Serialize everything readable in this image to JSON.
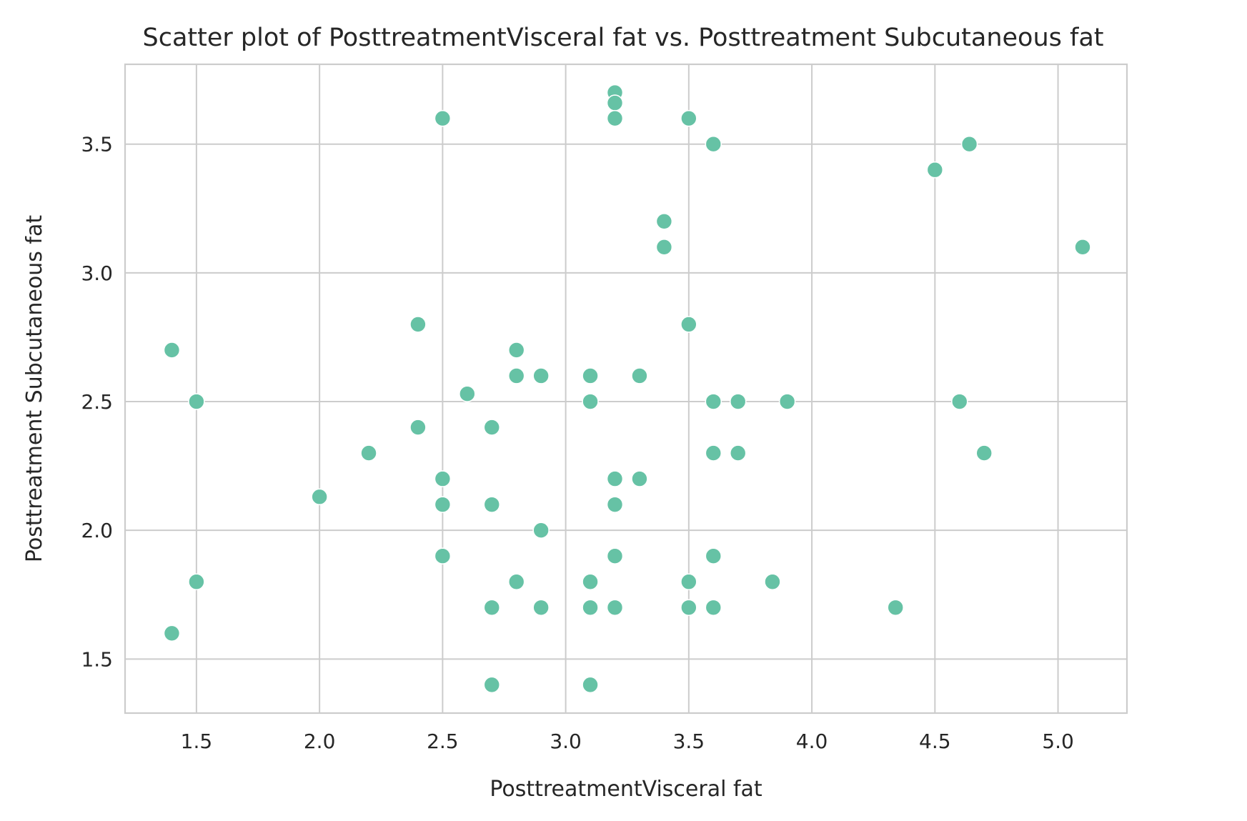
{
  "chart_data": {
    "type": "scatter",
    "title": "Scatter plot of PosttreatmentVisceral fat vs. Posttreatment Subcutaneous fat",
    "xlabel": "PosttreatmentVisceral fat",
    "ylabel": "Posttreatment Subcutaneous fat",
    "xlim": [
      1.21,
      5.28
    ],
    "ylim": [
      1.29,
      3.81
    ],
    "xticks": [
      1.5,
      2.0,
      2.5,
      3.0,
      3.5,
      4.0,
      4.5,
      5.0
    ],
    "xtick_labels": [
      "1.5",
      "2.0",
      "2.5",
      "3.0",
      "3.5",
      "4.0",
      "4.5",
      "5.0"
    ],
    "yticks": [
      1.5,
      2.0,
      2.5,
      3.0,
      3.5
    ],
    "ytick_labels": [
      "1.5",
      "2.0",
      "2.5",
      "3.0",
      "3.5"
    ],
    "grid": true,
    "marker_color": "#66c2a5",
    "x": [
      1.4,
      1.4,
      1.5,
      1.5,
      2.0,
      2.2,
      2.4,
      2.4,
      2.5,
      2.5,
      2.5,
      2.5,
      2.6,
      2.7,
      2.7,
      2.7,
      2.7,
      2.8,
      2.8,
      2.8,
      2.9,
      2.9,
      2.9,
      3.1,
      3.1,
      3.1,
      3.1,
      3.1,
      3.2,
      3.2,
      3.2,
      3.2,
      3.2,
      3.2,
      3.2,
      3.3,
      3.3,
      3.4,
      3.4,
      3.5,
      3.5,
      3.5,
      3.5,
      3.6,
      3.6,
      3.6,
      3.6,
      3.6,
      3.7,
      3.7,
      3.84,
      3.9,
      4.34,
      4.5,
      4.6,
      4.64,
      4.7,
      5.1
    ],
    "y": [
      2.7,
      1.6,
      2.5,
      1.8,
      2.13,
      2.3,
      2.8,
      2.4,
      3.6,
      2.2,
      2.1,
      1.9,
      2.53,
      2.4,
      2.1,
      1.7,
      1.4,
      2.7,
      2.6,
      1.8,
      2.6,
      2.0,
      1.7,
      2.6,
      2.5,
      1.8,
      1.7,
      1.4,
      3.7,
      3.66,
      3.6,
      2.2,
      2.1,
      1.9,
      1.7,
      2.6,
      2.2,
      3.2,
      3.1,
      3.6,
      2.8,
      1.8,
      1.7,
      3.5,
      2.5,
      2.3,
      1.9,
      1.7,
      2.5,
      2.3,
      1.8,
      2.5,
      1.7,
      3.4,
      2.5,
      3.5,
      2.3,
      3.1
    ]
  }
}
